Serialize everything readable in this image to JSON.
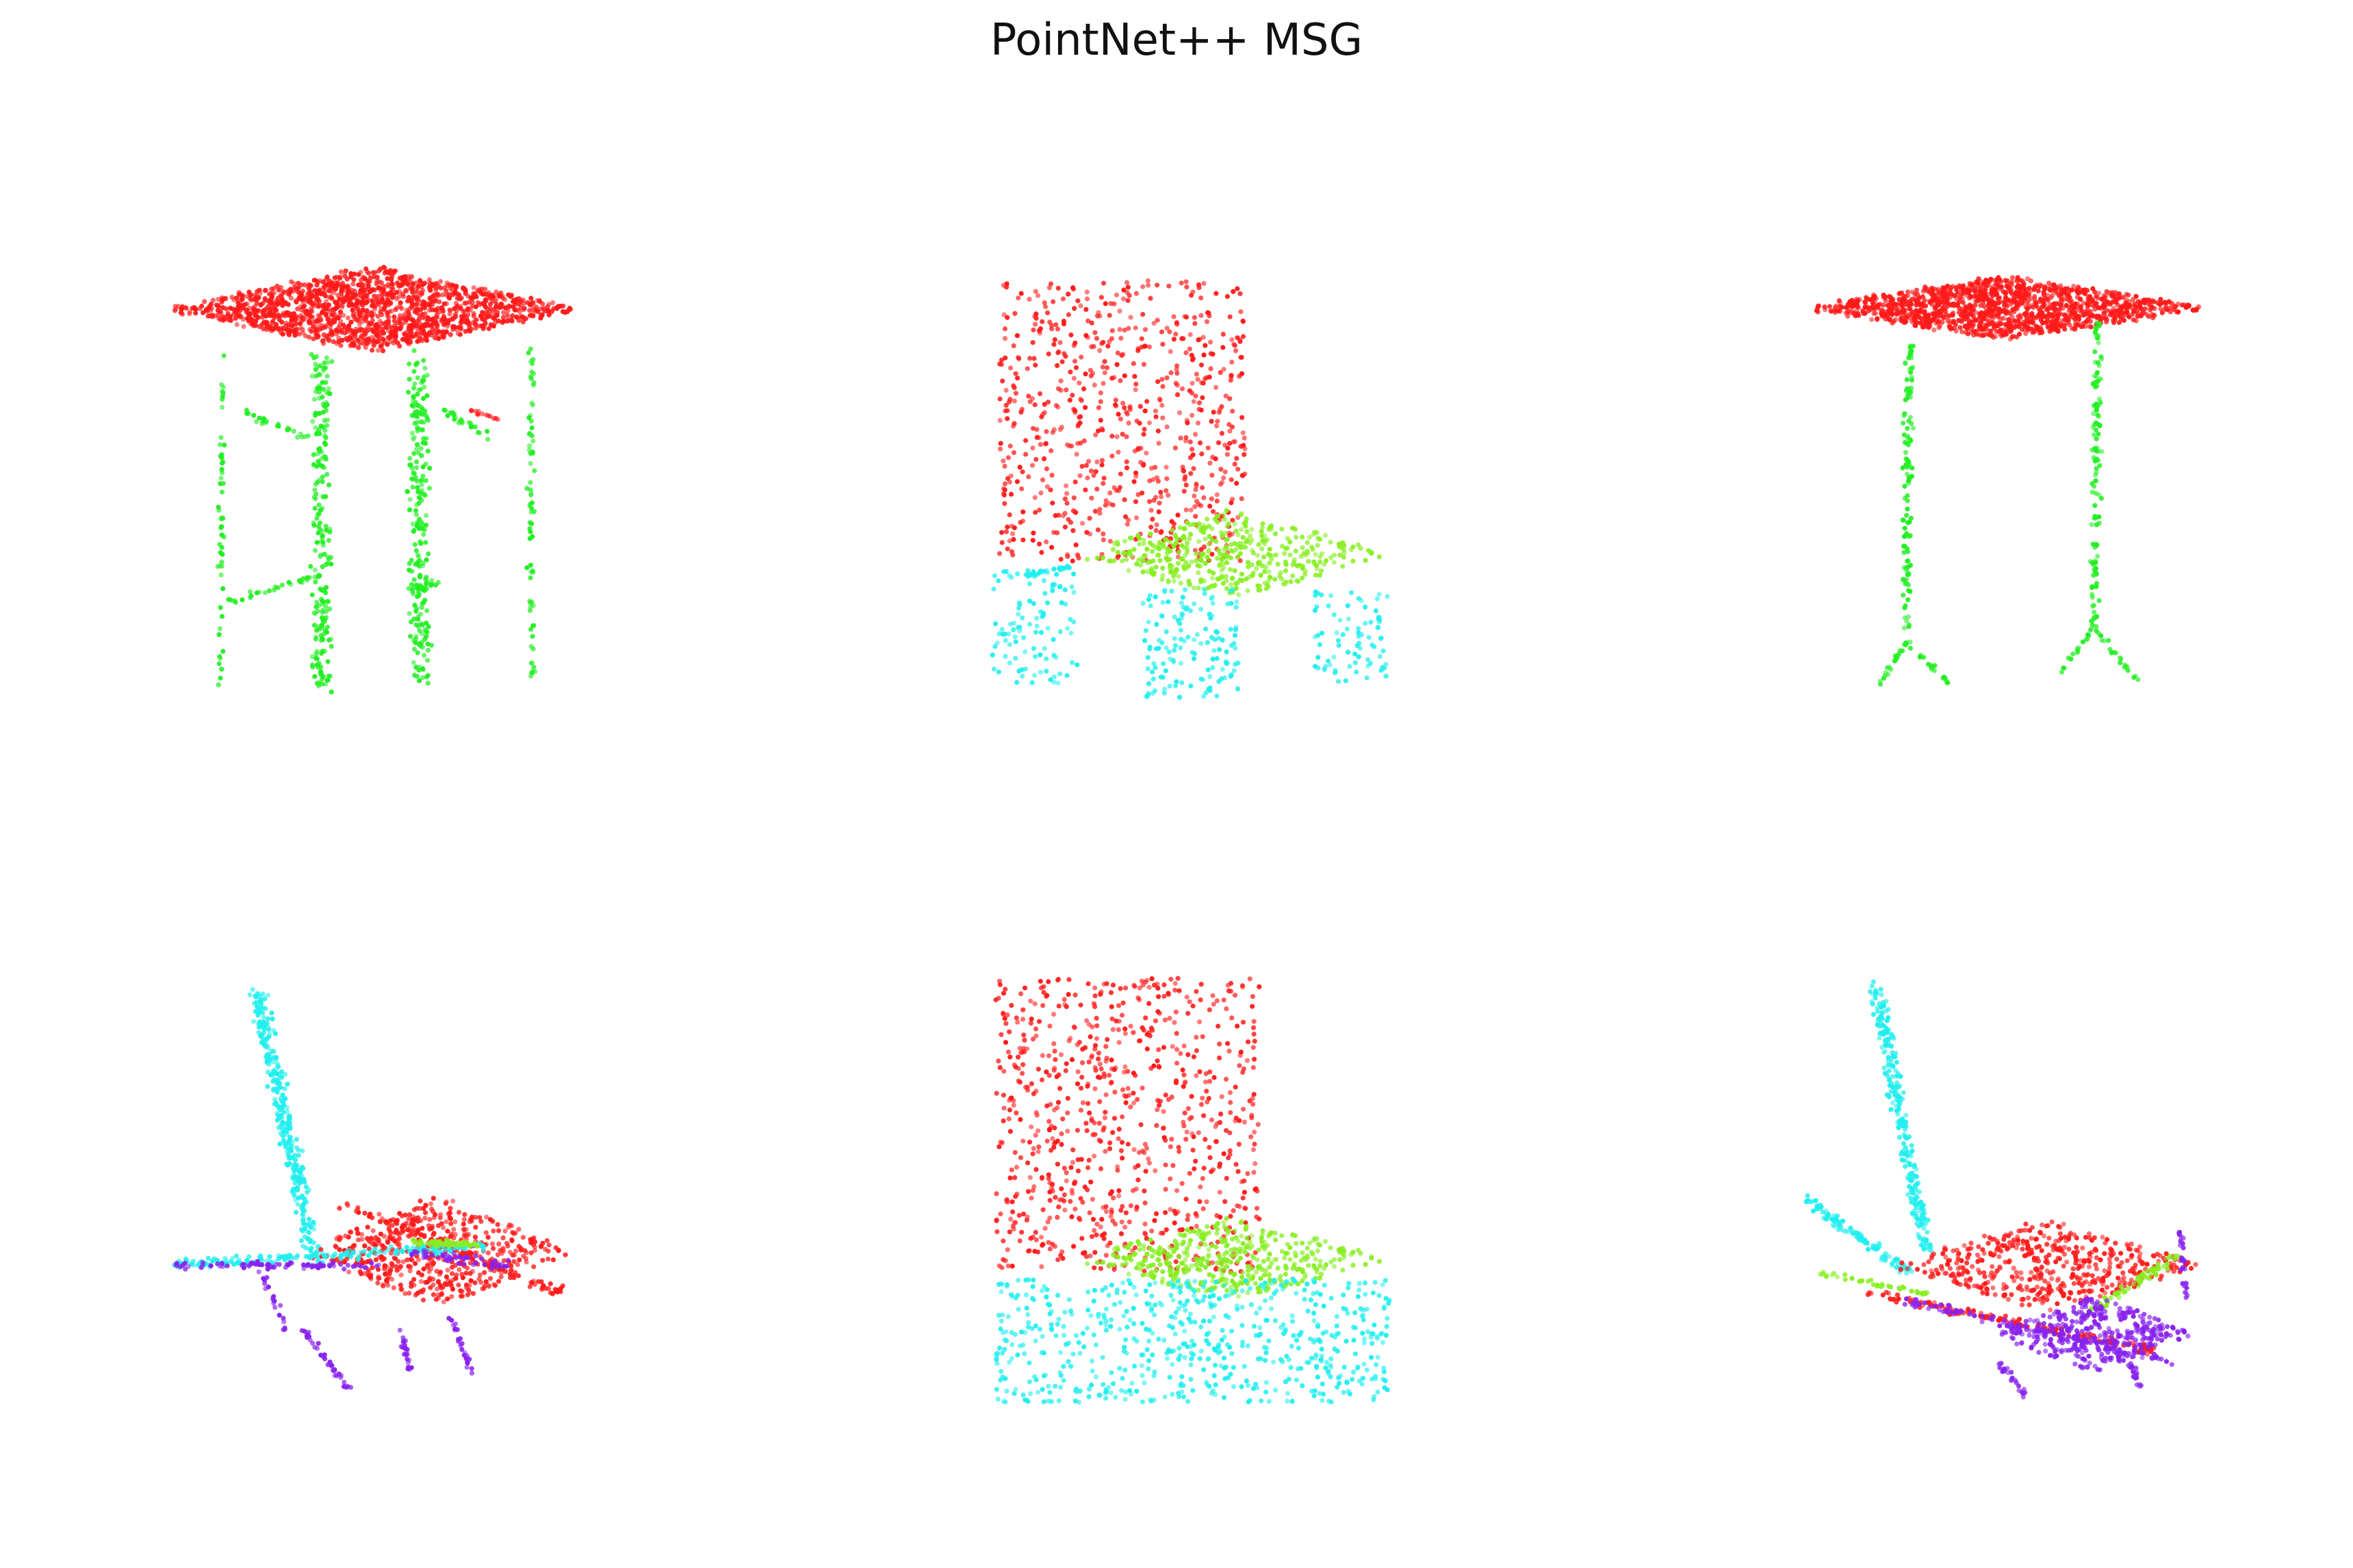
{
  "figure": {
    "title": "PointNet++ MSG"
  },
  "colors": {
    "background": "#ffffff",
    "part_red": "#ff1a1a",
    "part_green": "#22ee22",
    "part_lime": "#88ee22",
    "part_cyan": "#22eeee",
    "part_purple": "#8822ee"
  },
  "panels": [
    {
      "id": "table-1",
      "object": "table",
      "parts": [
        "red",
        "green"
      ]
    },
    {
      "id": "chair-1",
      "object": "chair",
      "parts": [
        "red",
        "lime",
        "cyan"
      ]
    },
    {
      "id": "table-2",
      "object": "table",
      "parts": [
        "red",
        "green"
      ]
    },
    {
      "id": "airplane-1",
      "object": "airplane",
      "parts": [
        "red",
        "cyan",
        "lime",
        "purple"
      ]
    },
    {
      "id": "chair-2",
      "object": "chair",
      "parts": [
        "red",
        "lime",
        "cyan"
      ]
    },
    {
      "id": "airplane-2",
      "object": "airplane",
      "parts": [
        "red",
        "cyan",
        "lime",
        "purple"
      ]
    }
  ]
}
